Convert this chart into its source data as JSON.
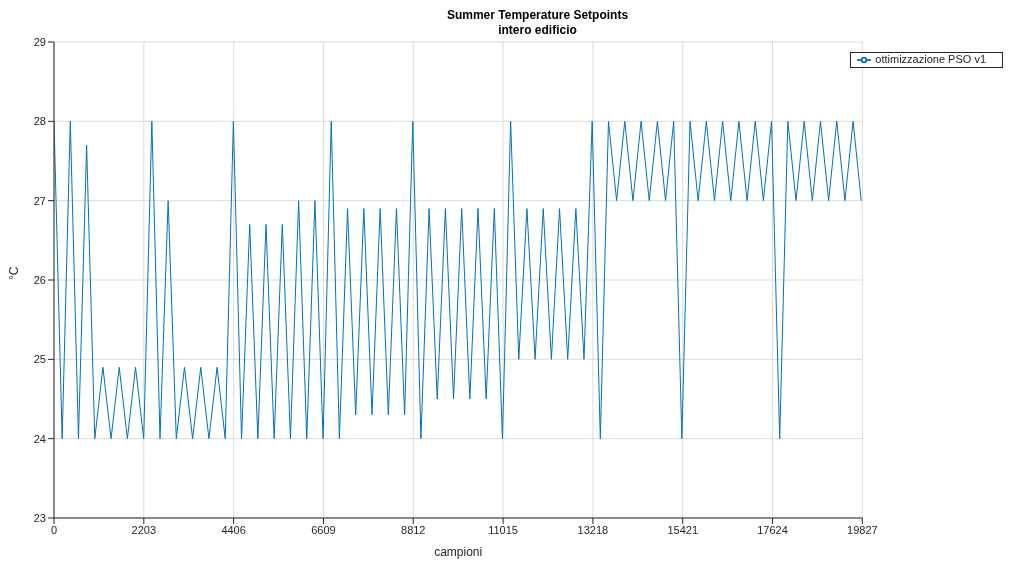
{
  "chart_data": {
    "type": "line",
    "title": "Summer Temperature Setpoints",
    "subtitle": "intero edificio",
    "xlabel": "campioni",
    "ylabel": "°C",
    "xlim": [
      0,
      19827
    ],
    "xticks": [
      0,
      2203,
      4406,
      6609,
      8812,
      11015,
      13218,
      15421,
      17624,
      19827
    ],
    "ylim": [
      23,
      29
    ],
    "yticks": [
      23,
      24,
      25,
      26,
      27,
      28,
      29
    ],
    "grid": true,
    "legend": "top right",
    "marker": "none",
    "line_style": "solid",
    "series": [
      {
        "name": "ottimizzazione PSO v1",
        "color": "#0072bd",
        "x": [
          0,
          200,
          400,
          600,
          800,
          1000,
          1200,
          1400,
          1600,
          1800,
          2000,
          2200,
          2400,
          2600,
          2800,
          3000,
          3200,
          3400,
          3600,
          3800,
          4000,
          4200,
          4400,
          4600,
          4800,
          5000,
          5200,
          5400,
          5600,
          5800,
          6000,
          6200,
          6400,
          6600,
          6800,
          7000,
          7200,
          7400,
          7600,
          7800,
          8000,
          8200,
          8400,
          8600,
          8800,
          9000,
          9200,
          9400,
          9600,
          9800,
          10000,
          10200,
          10400,
          10600,
          10800,
          11000,
          11200,
          11400,
          11600,
          11800,
          12000,
          12200,
          12400,
          12600,
          12800,
          13000,
          13200,
          13400,
          13600,
          13800,
          14000,
          14200,
          14400,
          14600,
          14800,
          15000,
          15200,
          15400,
          15600,
          15800,
          16000,
          16200,
          16400,
          16600,
          16800,
          17000,
          17200,
          17400,
          17600,
          17800,
          18000,
          18200,
          18400,
          18600,
          18800,
          19000,
          19200,
          19400,
          19600,
          19800
        ],
        "values": [
          28,
          24,
          28,
          24,
          27.7,
          24,
          24.9,
          24,
          24.9,
          24,
          24.9,
          24,
          28,
          24,
          27,
          24,
          24.9,
          24,
          24.9,
          24,
          24.9,
          24,
          28,
          24,
          26.7,
          24,
          26.7,
          24,
          26.7,
          24,
          27,
          24,
          27,
          24,
          28,
          24,
          26.9,
          24.3,
          26.9,
          24.3,
          26.9,
          24.3,
          26.9,
          24.3,
          28,
          24,
          26.9,
          24.5,
          26.9,
          24.5,
          26.9,
          24.5,
          26.9,
          24.5,
          26.9,
          24,
          28,
          25,
          26.9,
          25,
          26.9,
          25,
          26.9,
          25,
          26.9,
          25,
          28,
          24,
          28,
          27,
          28,
          27,
          28,
          27,
          28,
          27,
          28,
          24,
          28,
          27,
          28,
          27,
          28,
          27,
          28,
          27,
          28,
          27,
          28,
          24,
          28,
          27,
          28,
          27,
          28,
          27,
          28,
          27,
          28,
          27
        ]
      }
    ]
  }
}
